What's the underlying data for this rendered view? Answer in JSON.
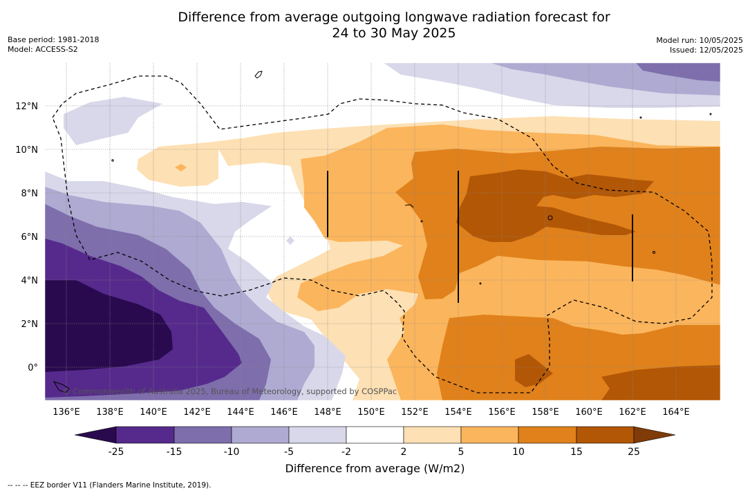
{
  "title_line1": "Difference from average outgoing longwave radiation forecast for",
  "title_line2": "24 to 30 May 2025",
  "base_period": "Base period: 1981-2018",
  "model": "Model: ACCESS-S2",
  "model_run": "Model run: 10/05/2025",
  "issued": "Issued: 12/05/2025",
  "copyright": "© Commonwealth of Australia 2025, Bureau of Meteorology, supported by COSPPac",
  "colorbar": {
    "label": "Difference from average (W/m2)",
    "ticks": [
      "-25",
      "-15",
      "-10",
      "-5",
      "-2",
      "2",
      "5",
      "10",
      "15",
      "25"
    ],
    "colors": [
      "#2a0a4f",
      "#562a8c",
      "#7e6eac",
      "#aeaad1",
      "#d8d8ea",
      "#ffffff",
      "#fde0b3",
      "#fbb55c",
      "#e0811b",
      "#b25706",
      "#7f3b08"
    ]
  },
  "footnote": "--  --  -- EEZ border V11 (Flanders Marine Institute, 2019).",
  "map": {
    "lon_range": [
      135,
      166
    ],
    "lat_range": [
      -1.5,
      14
    ],
    "lon_ticks": [
      "136°E",
      "138°E",
      "140°E",
      "142°E",
      "144°E",
      "146°E",
      "148°E",
      "150°E",
      "152°E",
      "154°E",
      "156°E",
      "158°E",
      "160°E",
      "162°E",
      "164°E"
    ],
    "lat_ticks": [
      "0°",
      "2°N",
      "4°N",
      "6°N",
      "8°N",
      "10°N",
      "12°N"
    ]
  }
}
